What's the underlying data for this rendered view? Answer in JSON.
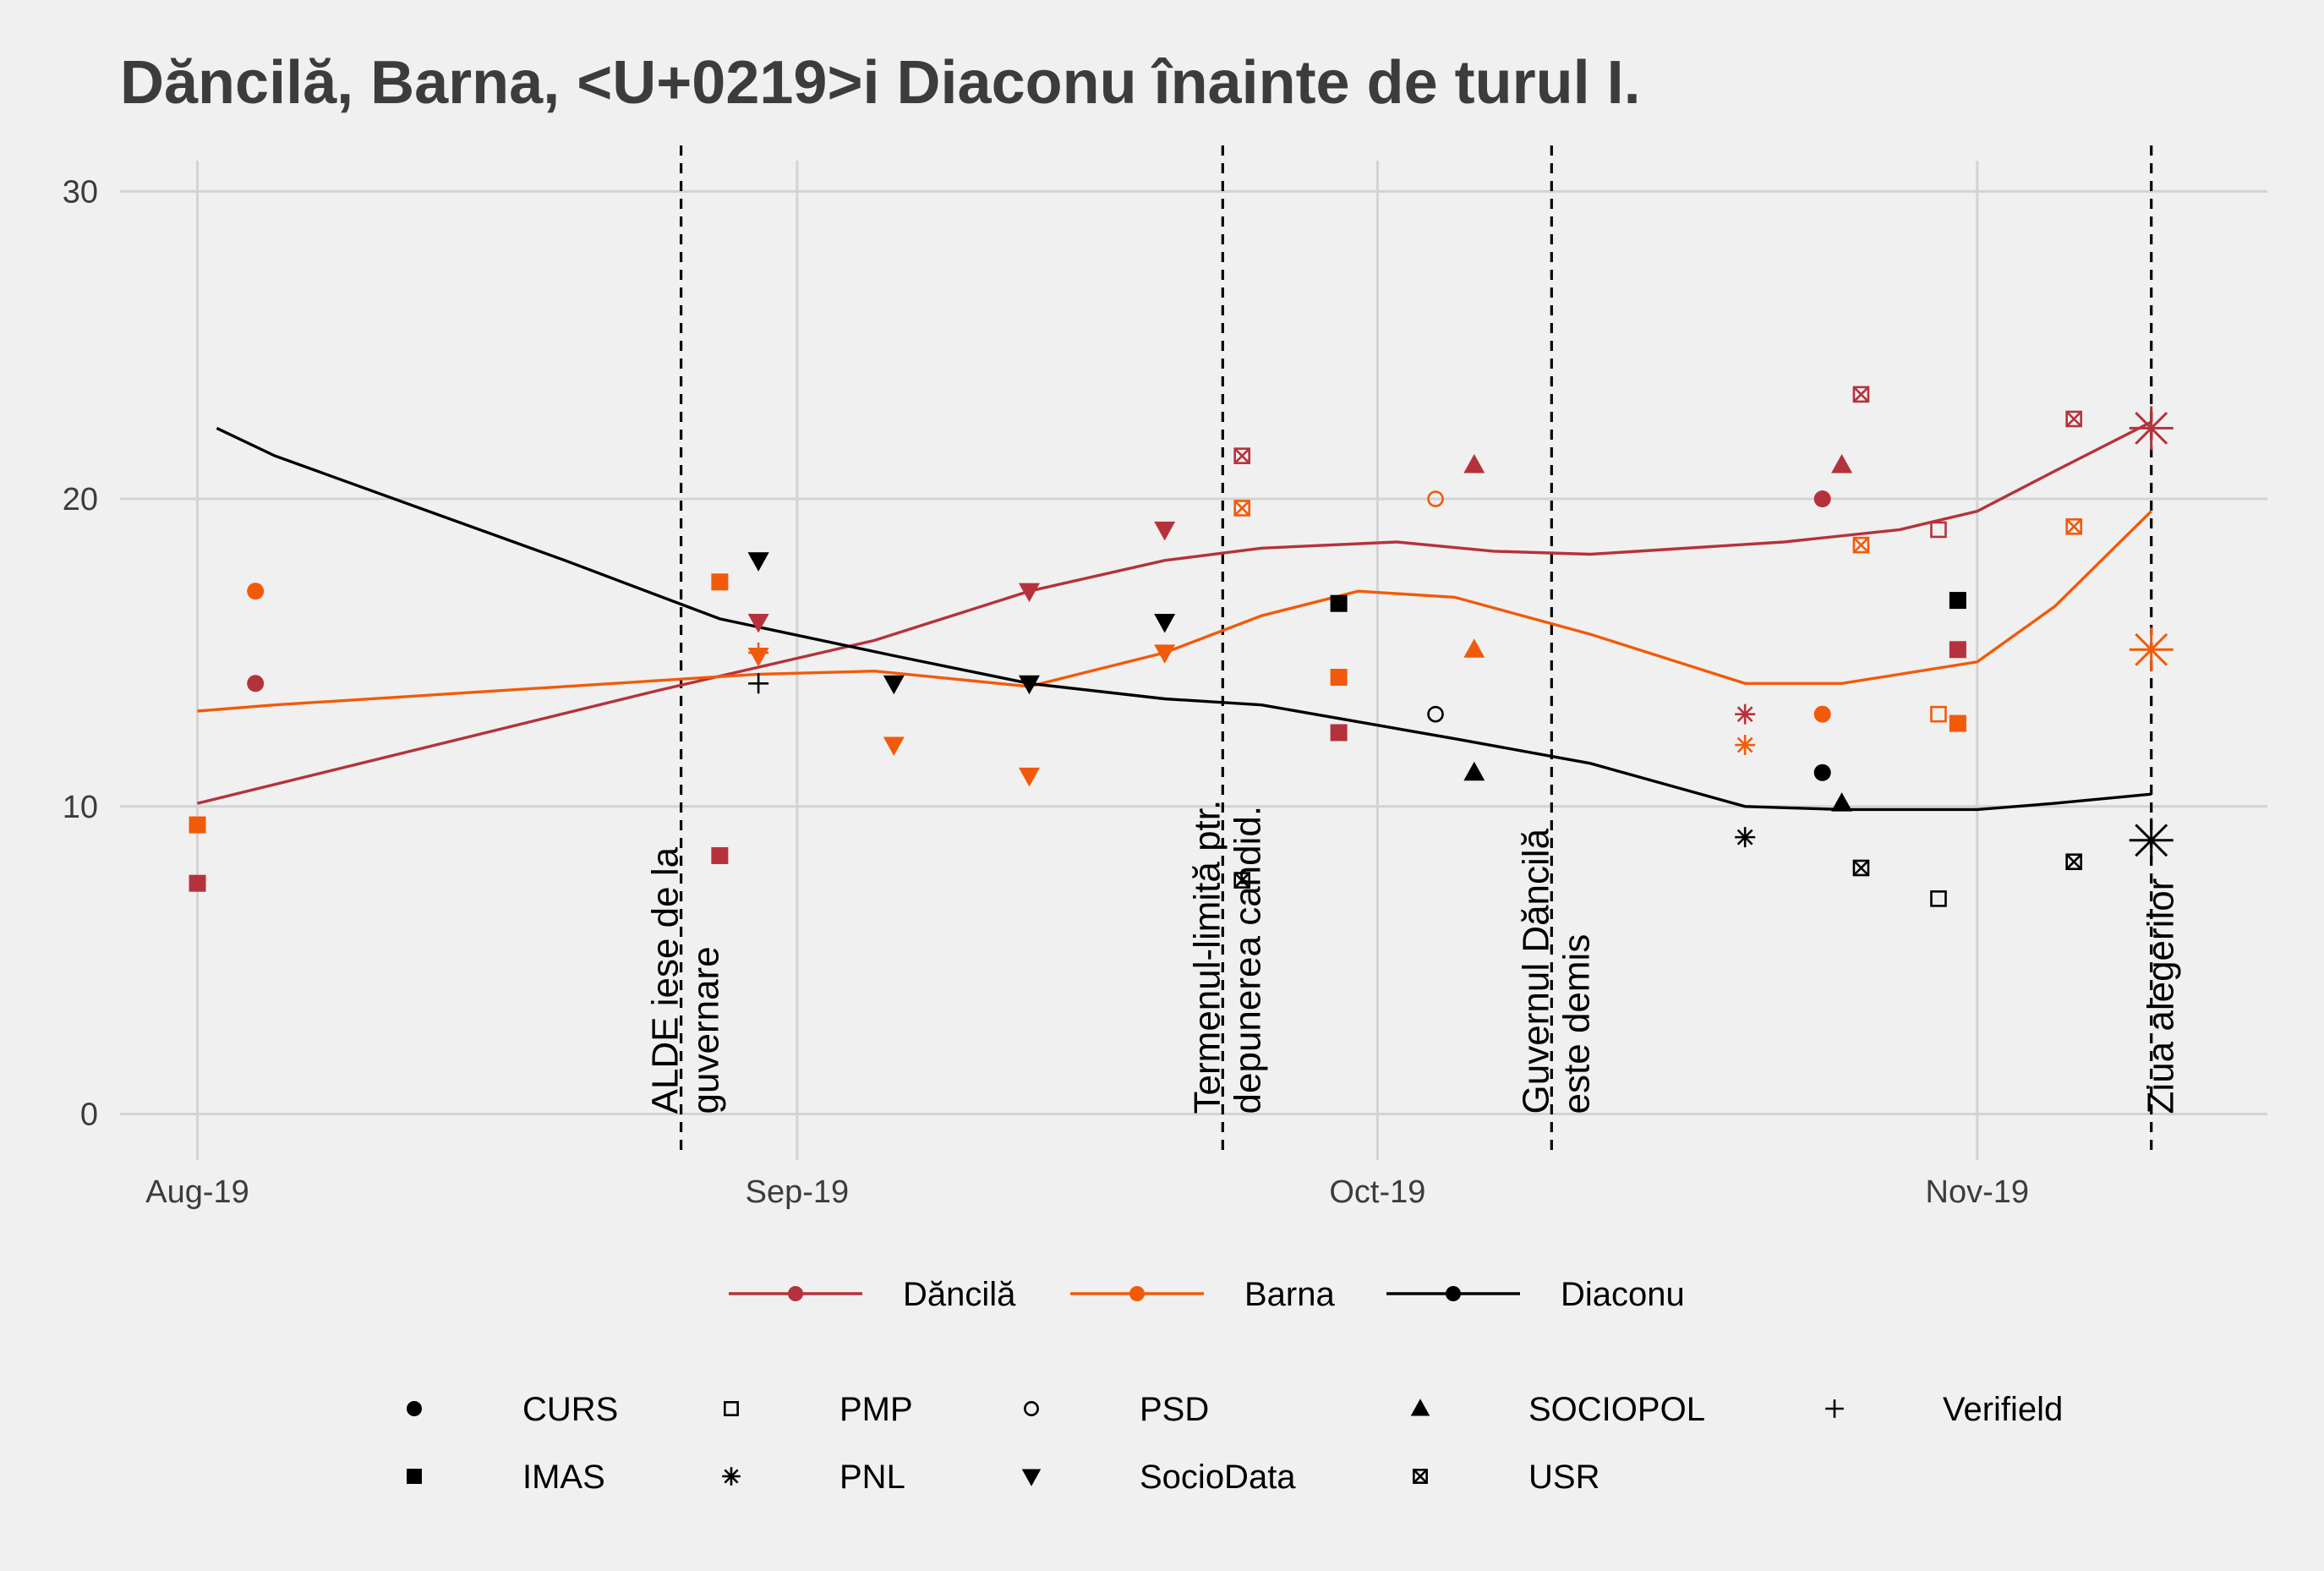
{
  "chart_data": {
    "type": "scatter",
    "title": "Dăncilă, Barna, <U+0219>i Diaconu înainte de turul I.",
    "xlabel": "",
    "ylabel": "",
    "x_ticks": [
      "Aug-19",
      "Sep-19",
      "Oct-19",
      "Nov-19"
    ],
    "y_ticks": [
      0,
      10,
      20,
      30
    ],
    "ylim": [
      -1.5,
      31
    ],
    "xlim": [
      "2019-07-28",
      "2019-11-16"
    ],
    "grid": true,
    "legend_position": "bottom",
    "colors": {
      "Dăncilă": "#b5323c",
      "Barna": "#f25a0a",
      "Diaconu": "#000000",
      "grid": "#d3d3d3",
      "background": "#f0f0f0",
      "title": "#3c3c3c"
    },
    "series": [
      {
        "name": "Dăncilă",
        "trend": [
          {
            "x": "2019-08-01",
            "y": 10.1
          },
          {
            "x": "2019-08-25",
            "y": 13.8
          },
          {
            "x": "2019-09-05",
            "y": 15.4
          },
          {
            "x": "2019-09-13",
            "y": 17.0
          },
          {
            "x": "2019-09-20",
            "y": 18.0
          },
          {
            "x": "2019-09-25",
            "y": 18.4
          },
          {
            "x": "2019-10-02",
            "y": 18.6
          },
          {
            "x": "2019-10-07",
            "y": 18.3
          },
          {
            "x": "2019-10-12",
            "y": 18.2
          },
          {
            "x": "2019-10-22",
            "y": 18.6
          },
          {
            "x": "2019-10-28",
            "y": 19.0
          },
          {
            "x": "2019-11-01",
            "y": 19.6
          },
          {
            "x": "2019-11-05",
            "y": 20.9
          },
          {
            "x": "2019-11-10",
            "y": 22.5
          }
        ],
        "points": [
          {
            "x": "2019-08-04",
            "y": 14.0,
            "source": "CURS"
          },
          {
            "x": "2019-08-01",
            "y": 7.5,
            "source": "IMAS"
          },
          {
            "x": "2019-08-28",
            "y": 8.4,
            "source": "IMAS"
          },
          {
            "x": "2019-08-30",
            "y": 18.0,
            "source": "SocioData"
          },
          {
            "x": "2019-08-30",
            "y": 16.0,
            "source": "SocioData"
          },
          {
            "x": "2019-09-13",
            "y": 17.0,
            "source": "SocioData"
          },
          {
            "x": "2019-09-20",
            "y": 19.0,
            "source": "SocioData"
          },
          {
            "x": "2019-09-24",
            "y": 21.4,
            "source": "USR"
          },
          {
            "x": "2019-09-29",
            "y": 12.4,
            "source": "IMAS"
          },
          {
            "x": "2019-10-06",
            "y": 21.1,
            "source": "SOCIOPOL"
          },
          {
            "x": "2019-10-20",
            "y": 13.0,
            "source": "PNL"
          },
          {
            "x": "2019-10-24",
            "y": 20.0,
            "source": "CURS"
          },
          {
            "x": "2019-10-25",
            "y": 21.1,
            "source": "SOCIOPOL"
          },
          {
            "x": "2019-10-26",
            "y": 23.4,
            "source": "USR"
          },
          {
            "x": "2019-10-30",
            "y": 19.0,
            "source": "PMP"
          },
          {
            "x": "2019-10-31",
            "y": 15.1,
            "source": "IMAS"
          },
          {
            "x": "2019-11-06",
            "y": 22.6,
            "source": "USR"
          }
        ],
        "election_day": {
          "x": "2019-11-10",
          "y": 22.3
        }
      },
      {
        "name": "Barna",
        "trend": [
          {
            "x": "2019-08-01",
            "y": 13.1
          },
          {
            "x": "2019-08-05",
            "y": 13.3
          },
          {
            "x": "2019-08-30",
            "y": 14.3
          },
          {
            "x": "2019-09-05",
            "y": 14.4
          },
          {
            "x": "2019-09-13",
            "y": 13.9
          },
          {
            "x": "2019-09-20",
            "y": 15.0
          },
          {
            "x": "2019-09-25",
            "y": 16.2
          },
          {
            "x": "2019-09-30",
            "y": 17.0
          },
          {
            "x": "2019-10-05",
            "y": 16.8
          },
          {
            "x": "2019-10-12",
            "y": 15.6
          },
          {
            "x": "2019-10-20",
            "y": 14.0
          },
          {
            "x": "2019-10-25",
            "y": 14.0
          },
          {
            "x": "2019-11-01",
            "y": 14.7
          },
          {
            "x": "2019-11-05",
            "y": 16.5
          },
          {
            "x": "2019-11-10",
            "y": 19.6
          }
        ],
        "points": [
          {
            "x": "2019-08-04",
            "y": 17.0,
            "source": "CURS"
          },
          {
            "x": "2019-08-01",
            "y": 9.4,
            "source": "IMAS"
          },
          {
            "x": "2019-08-28",
            "y": 17.3,
            "source": "IMAS"
          },
          {
            "x": "2019-08-30",
            "y": 15.0,
            "source": "Verifield"
          },
          {
            "x": "2019-08-30",
            "y": 14.9,
            "source": "SocioData"
          },
          {
            "x": "2019-09-06",
            "y": 12.0,
            "source": "SocioData"
          },
          {
            "x": "2019-09-13",
            "y": 11.0,
            "source": "SocioData"
          },
          {
            "x": "2019-09-20",
            "y": 15.0,
            "source": "SocioData"
          },
          {
            "x": "2019-09-24",
            "y": 19.7,
            "source": "USR"
          },
          {
            "x": "2019-09-29",
            "y": 14.2,
            "source": "IMAS"
          },
          {
            "x": "2019-10-04",
            "y": 20.0,
            "source": "PSD"
          },
          {
            "x": "2019-10-06",
            "y": 15.1,
            "source": "SOCIOPOL"
          },
          {
            "x": "2019-10-20",
            "y": 12.0,
            "source": "PNL"
          },
          {
            "x": "2019-10-24",
            "y": 13.0,
            "source": "CURS"
          },
          {
            "x": "2019-10-26",
            "y": 18.5,
            "source": "USR"
          },
          {
            "x": "2019-10-30",
            "y": 13.0,
            "source": "PMP"
          },
          {
            "x": "2019-10-31",
            "y": 12.7,
            "source": "IMAS"
          },
          {
            "x": "2019-11-06",
            "y": 19.1,
            "source": "USR"
          }
        ],
        "election_day": {
          "x": "2019-11-10",
          "y": 15.1
        }
      },
      {
        "name": "Diaconu",
        "trend": [
          {
            "x": "2019-08-02",
            "y": 22.3
          },
          {
            "x": "2019-08-05",
            "y": 21.4
          },
          {
            "x": "2019-08-20",
            "y": 18.0
          },
          {
            "x": "2019-08-28",
            "y": 16.1
          },
          {
            "x": "2019-09-06",
            "y": 14.9
          },
          {
            "x": "2019-09-13",
            "y": 14.0
          },
          {
            "x": "2019-09-20",
            "y": 13.5
          },
          {
            "x": "2019-09-25",
            "y": 13.3
          },
          {
            "x": "2019-10-05",
            "y": 12.2
          },
          {
            "x": "2019-10-12",
            "y": 11.4
          },
          {
            "x": "2019-10-20",
            "y": 10.0
          },
          {
            "x": "2019-10-25",
            "y": 9.9
          },
          {
            "x": "2019-11-01",
            "y": 9.9
          },
          {
            "x": "2019-11-05",
            "y": 10.1
          },
          {
            "x": "2019-11-10",
            "y": 10.4
          }
        ],
        "points": [
          {
            "x": "2019-08-30",
            "y": 18.0,
            "source": "SocioData"
          },
          {
            "x": "2019-08-30",
            "y": 14.0,
            "source": "Verifield"
          },
          {
            "x": "2019-09-06",
            "y": 14.0,
            "source": "SocioData"
          },
          {
            "x": "2019-09-13",
            "y": 14.0,
            "source": "SocioData"
          },
          {
            "x": "2019-09-20",
            "y": 16.0,
            "source": "SocioData"
          },
          {
            "x": "2019-09-24",
            "y": 7.6,
            "source": "USR"
          },
          {
            "x": "2019-09-29",
            "y": 16.6,
            "source": "IMAS"
          },
          {
            "x": "2019-10-04",
            "y": 13.0,
            "source": "PSD"
          },
          {
            "x": "2019-10-06",
            "y": 11.1,
            "source": "SOCIOPOL"
          },
          {
            "x": "2019-10-20",
            "y": 9.0,
            "source": "PNL"
          },
          {
            "x": "2019-10-24",
            "y": 11.1,
            "source": "CURS"
          },
          {
            "x": "2019-10-25",
            "y": 10.1,
            "source": "SOCIOPOL"
          },
          {
            "x": "2019-10-26",
            "y": 8.0,
            "source": "USR"
          },
          {
            "x": "2019-10-30",
            "y": 7.0,
            "source": "PMP"
          },
          {
            "x": "2019-10-31",
            "y": 16.7,
            "source": "IMAS"
          },
          {
            "x": "2019-11-06",
            "y": 8.2,
            "source": "USR"
          }
        ],
        "election_day": {
          "x": "2019-11-10",
          "y": 8.9
        }
      }
    ],
    "annotations": [
      {
        "x": "2019-08-26",
        "lines": [
          "ALDE iese de la",
          "guvernare"
        ]
      },
      {
        "x": "2019-09-23",
        "lines": [
          "Termenul-limită ptr.",
          "depunerea candid."
        ]
      },
      {
        "x": "2019-10-10",
        "lines": [
          "Guvernul Dăncilă",
          "este demis"
        ]
      },
      {
        "x": "2019-11-10",
        "lines": [
          "Ziua alegerilor"
        ]
      }
    ],
    "legend_candidates": [
      "Dăncilă",
      "Barna",
      "Diaconu"
    ],
    "legend_sources": [
      {
        "name": "CURS",
        "shape": "circle-filled"
      },
      {
        "name": "IMAS",
        "shape": "square-filled"
      },
      {
        "name": "PMP",
        "shape": "square-open"
      },
      {
        "name": "PNL",
        "shape": "asterisk"
      },
      {
        "name": "PSD",
        "shape": "circle-open"
      },
      {
        "name": "SocioData",
        "shape": "triangle-down"
      },
      {
        "name": "SOCIOPOL",
        "shape": "triangle-up"
      },
      {
        "name": "USR",
        "shape": "boxed-x"
      },
      {
        "name": "Verifield",
        "shape": "plus"
      }
    ]
  }
}
